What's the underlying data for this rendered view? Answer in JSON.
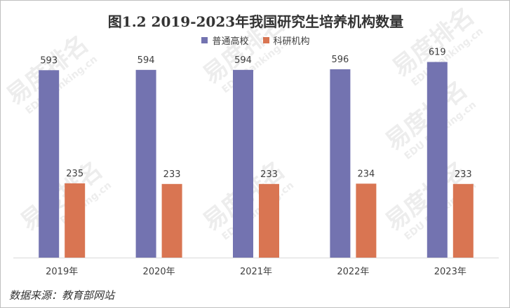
{
  "title": "图1.2  2019-2023年我国研究生培养机构数量",
  "source": "数据来源：教育部网站",
  "watermark": {
    "brand": "易度排名",
    "sub": "EDU Ranking.cn"
  },
  "colors": {
    "series1": "#7373b0",
    "series2": "#d97552",
    "axis": "#d9d9d9",
    "label": "#404040"
  },
  "chart_data": {
    "type": "bar",
    "title": "图1.2  2019-2023年我国研究生培养机构数量",
    "categories": [
      "2019年",
      "2020年",
      "2021年",
      "2022年",
      "2023年"
    ],
    "series": [
      {
        "name": "普通高校",
        "values": [
          593,
          594,
          594,
          596,
          619
        ]
      },
      {
        "name": "科研机构",
        "values": [
          235,
          233,
          233,
          234,
          233
        ]
      }
    ],
    "ylim": [
      0,
      680
    ],
    "grid": false,
    "legend": "top-center",
    "data_labels": true
  }
}
